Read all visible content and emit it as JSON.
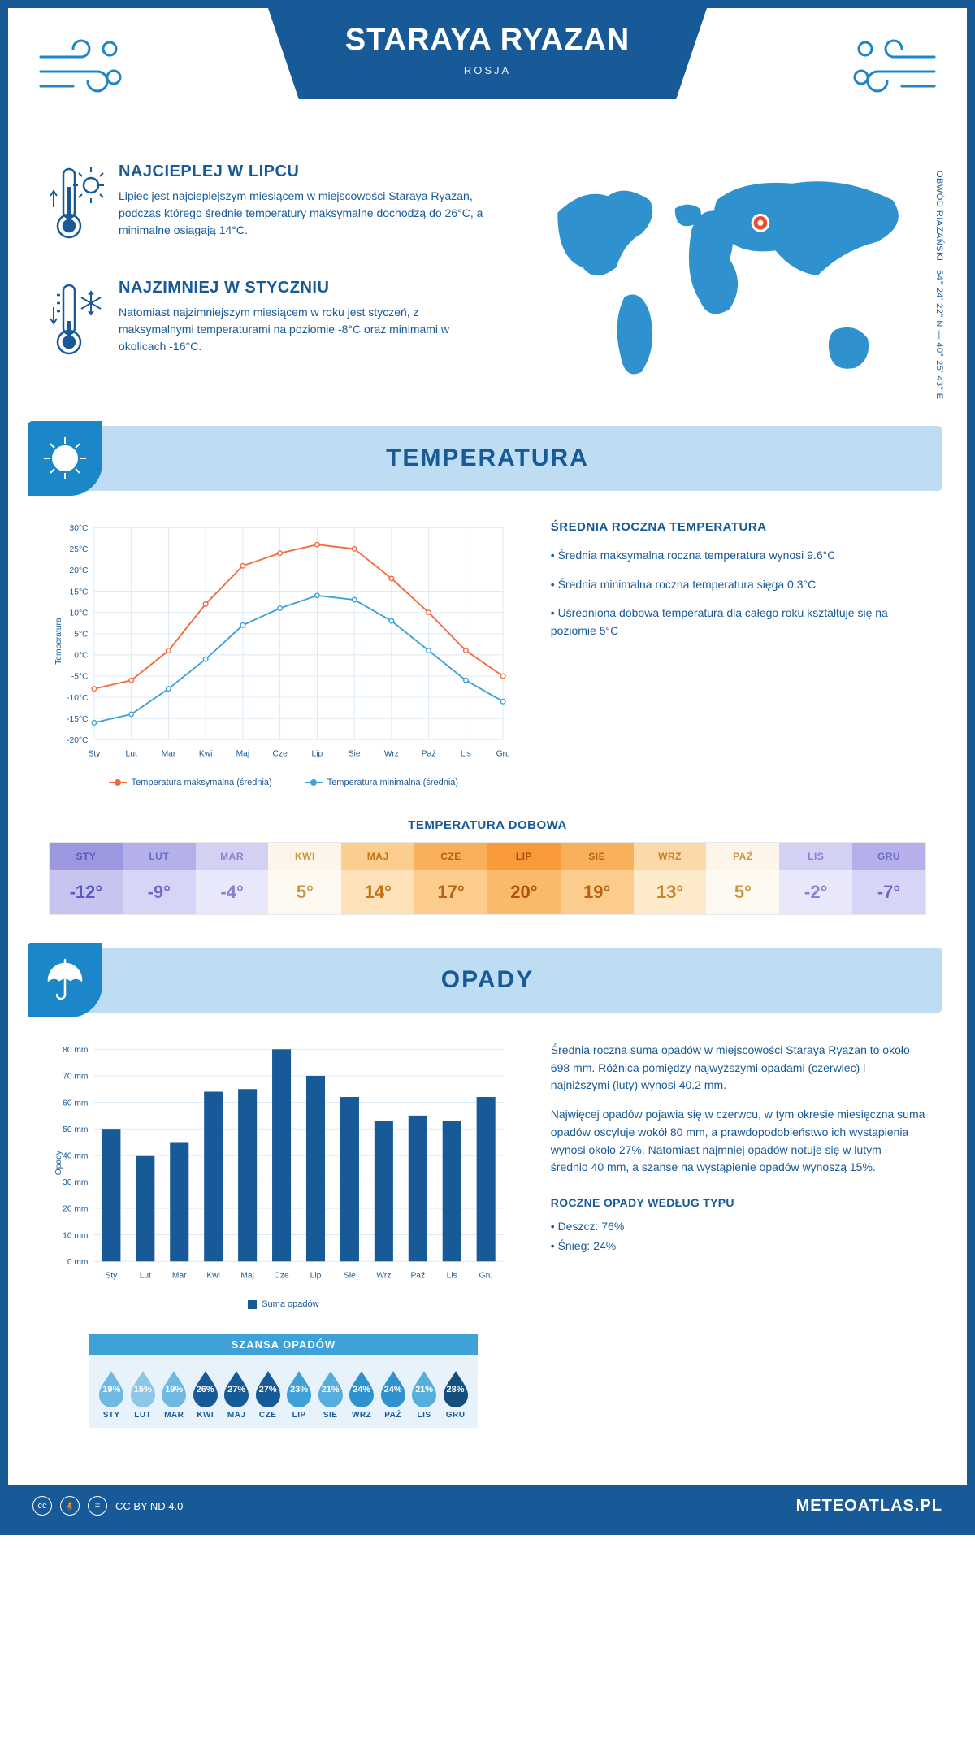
{
  "header": {
    "title": "STARAYA RYAZAN",
    "subtitle": "ROSJA"
  },
  "coords_text": "54° 24' 22\" N — 40° 25' 43\" E",
  "region_text": "OBWÓD RIAZAŃSKI",
  "warmest": {
    "title": "NAJCIEPLEJ W LIPCU",
    "body": "Lipiec jest najcieplejszym miesiącem w miejscowości Staraya Ryazan, podczas którego średnie temperatury maksymalne dochodzą do 26°C, a minimalne osiągają 14°C."
  },
  "coldest": {
    "title": "NAJZIMNIEJ W STYCZNIU",
    "body": "Natomiast najzimniejszym miesiącem w roku jest styczeń, z maksymalnymi temperaturami na poziomie -8°C oraz minimami w okolicach -16°C."
  },
  "temperature_section": {
    "title": "TEMPERATURA",
    "line_chart": {
      "type": "line",
      "months": [
        "Sty",
        "Lut",
        "Mar",
        "Kwi",
        "Maj",
        "Cze",
        "Lip",
        "Sie",
        "Wrz",
        "Paź",
        "Lis",
        "Gru"
      ],
      "series_max": {
        "label": "Temperatura maksymalna (średnia)",
        "color": "#f26b3a",
        "values": [
          -8,
          -6,
          1,
          12,
          21,
          24,
          26,
          25,
          18,
          10,
          1,
          -5
        ]
      },
      "series_min": {
        "label": "Temperatura minimalna (średnia)",
        "color": "#3ea1d7",
        "values": [
          -16,
          -14,
          -8,
          -1,
          7,
          11,
          14,
          13,
          8,
          1,
          -6,
          -11
        ]
      },
      "ylabel": "Temperatura",
      "ymin": -20,
      "ymax": 30,
      "ystep": 5,
      "yunit": "°C",
      "grid_color": "#d8e8f5",
      "background": "#ffffff",
      "marker": "circle",
      "marker_size": 3,
      "line_width": 2
    },
    "stats": {
      "title": "ŚREDNIA ROCZNA TEMPERATURA",
      "bullets": [
        "Średnia maksymalna roczna temperatura wynosi 9.6°C",
        "Średnia minimalna roczna temperatura sięga 0.3°C",
        "Uśredniona dobowa temperatura dla całego roku kształtuje się na poziomie 5°C"
      ]
    },
    "daily_title": "TEMPERATURA DOBOWA",
    "daily_table": {
      "months": [
        "STY",
        "LUT",
        "MAR",
        "KWI",
        "MAJ",
        "CZE",
        "LIP",
        "SIE",
        "WRZ",
        "PAŹ",
        "LIS",
        "GRU"
      ],
      "values": [
        "-12°",
        "-9°",
        "-4°",
        "5°",
        "14°",
        "17°",
        "20°",
        "19°",
        "13°",
        "5°",
        "-2°",
        "-7°"
      ],
      "head_colors": [
        "#9b98e0",
        "#b4b1ea",
        "#d2d0f3",
        "#fdf5ea",
        "#fbcd8f",
        "#f9b05a",
        "#f89a3a",
        "#f9b05a",
        "#fbd9a8",
        "#fdf5ea",
        "#d2d0f3",
        "#b4b1ea"
      ],
      "body_colors": [
        "#c7c5f0",
        "#d7d5f5",
        "#e9e8fa",
        "#fefaf2",
        "#fde2b9",
        "#fccc8c",
        "#fbba6b",
        "#fccc8c",
        "#fdeacb",
        "#fefaf2",
        "#e9e8fa",
        "#d7d5f5"
      ],
      "text_colors": [
        "#5b57c4",
        "#6d6ac9",
        "#8683d3",
        "#c99642",
        "#c47417",
        "#b86210",
        "#ad520a",
        "#b86210",
        "#c88324",
        "#c99642",
        "#8683d3",
        "#6d6ac9"
      ]
    }
  },
  "precipitation_section": {
    "title": "OPADY",
    "bar_chart": {
      "type": "bar",
      "months": [
        "Sty",
        "Lut",
        "Mar",
        "Kwi",
        "Maj",
        "Cze",
        "Lip",
        "Sie",
        "Wrz",
        "Paź",
        "Lis",
        "Gru"
      ],
      "values": [
        50,
        40,
        45,
        64,
        65,
        80,
        70,
        62,
        53,
        55,
        53,
        62
      ],
      "ylabel": "Opady",
      "ymin": 0,
      "ymax": 80,
      "ystep": 10,
      "yunit": " mm",
      "bar_color": "#185a97",
      "bar_width": 0.55,
      "grid_color": "#d8e8f5",
      "legend": "Suma opadów"
    },
    "body_p1": "Średnia roczna suma opadów w miejscowości Staraya Ryazan to około 698 mm. Różnica pomiędzy najwyższymi opadami (czerwiec) i najniższymi (luty) wynosi 40.2 mm.",
    "body_p2": "Najwięcej opadów pojawia się w czerwcu, w tym okresie miesięczna suma opadów oscyluje wokół 80 mm, a prawdopodobieństwo ich wystąpienia wynosi około 27%. Natomiast najmniej opadów notuje się w lutym - średnio 40 mm, a szanse na wystąpienie opadów wynoszą 15%.",
    "chance": {
      "title": "SZANSA OPADÓW",
      "months": [
        "STY",
        "LUT",
        "MAR",
        "KWI",
        "MAJ",
        "CZE",
        "LIP",
        "SIE",
        "WRZ",
        "PAŹ",
        "LIS",
        "GRU"
      ],
      "values": [
        19,
        15,
        19,
        26,
        27,
        27,
        23,
        21,
        24,
        24,
        21,
        28
      ],
      "drop_colors": [
        "#6eb8e2",
        "#8cc7e8",
        "#6eb8e2",
        "#185a97",
        "#185a97",
        "#185a97",
        "#3ea1d7",
        "#55aedc",
        "#2f92cf",
        "#2f92cf",
        "#55aedc",
        "#14507f"
      ]
    },
    "by_type": {
      "title": "ROCZNE OPADY WEDŁUG TYPU",
      "lines": [
        "Deszcz: 76%",
        "Śnieg: 24%"
      ]
    }
  },
  "footer": {
    "license": "CC BY-ND 4.0",
    "site": "METEOATLAS.PL"
  },
  "colors": {
    "primary": "#185a97",
    "light_blue": "#bedcf2",
    "mid_blue": "#3ea1d7",
    "accent_blue": "#1b87c9"
  }
}
